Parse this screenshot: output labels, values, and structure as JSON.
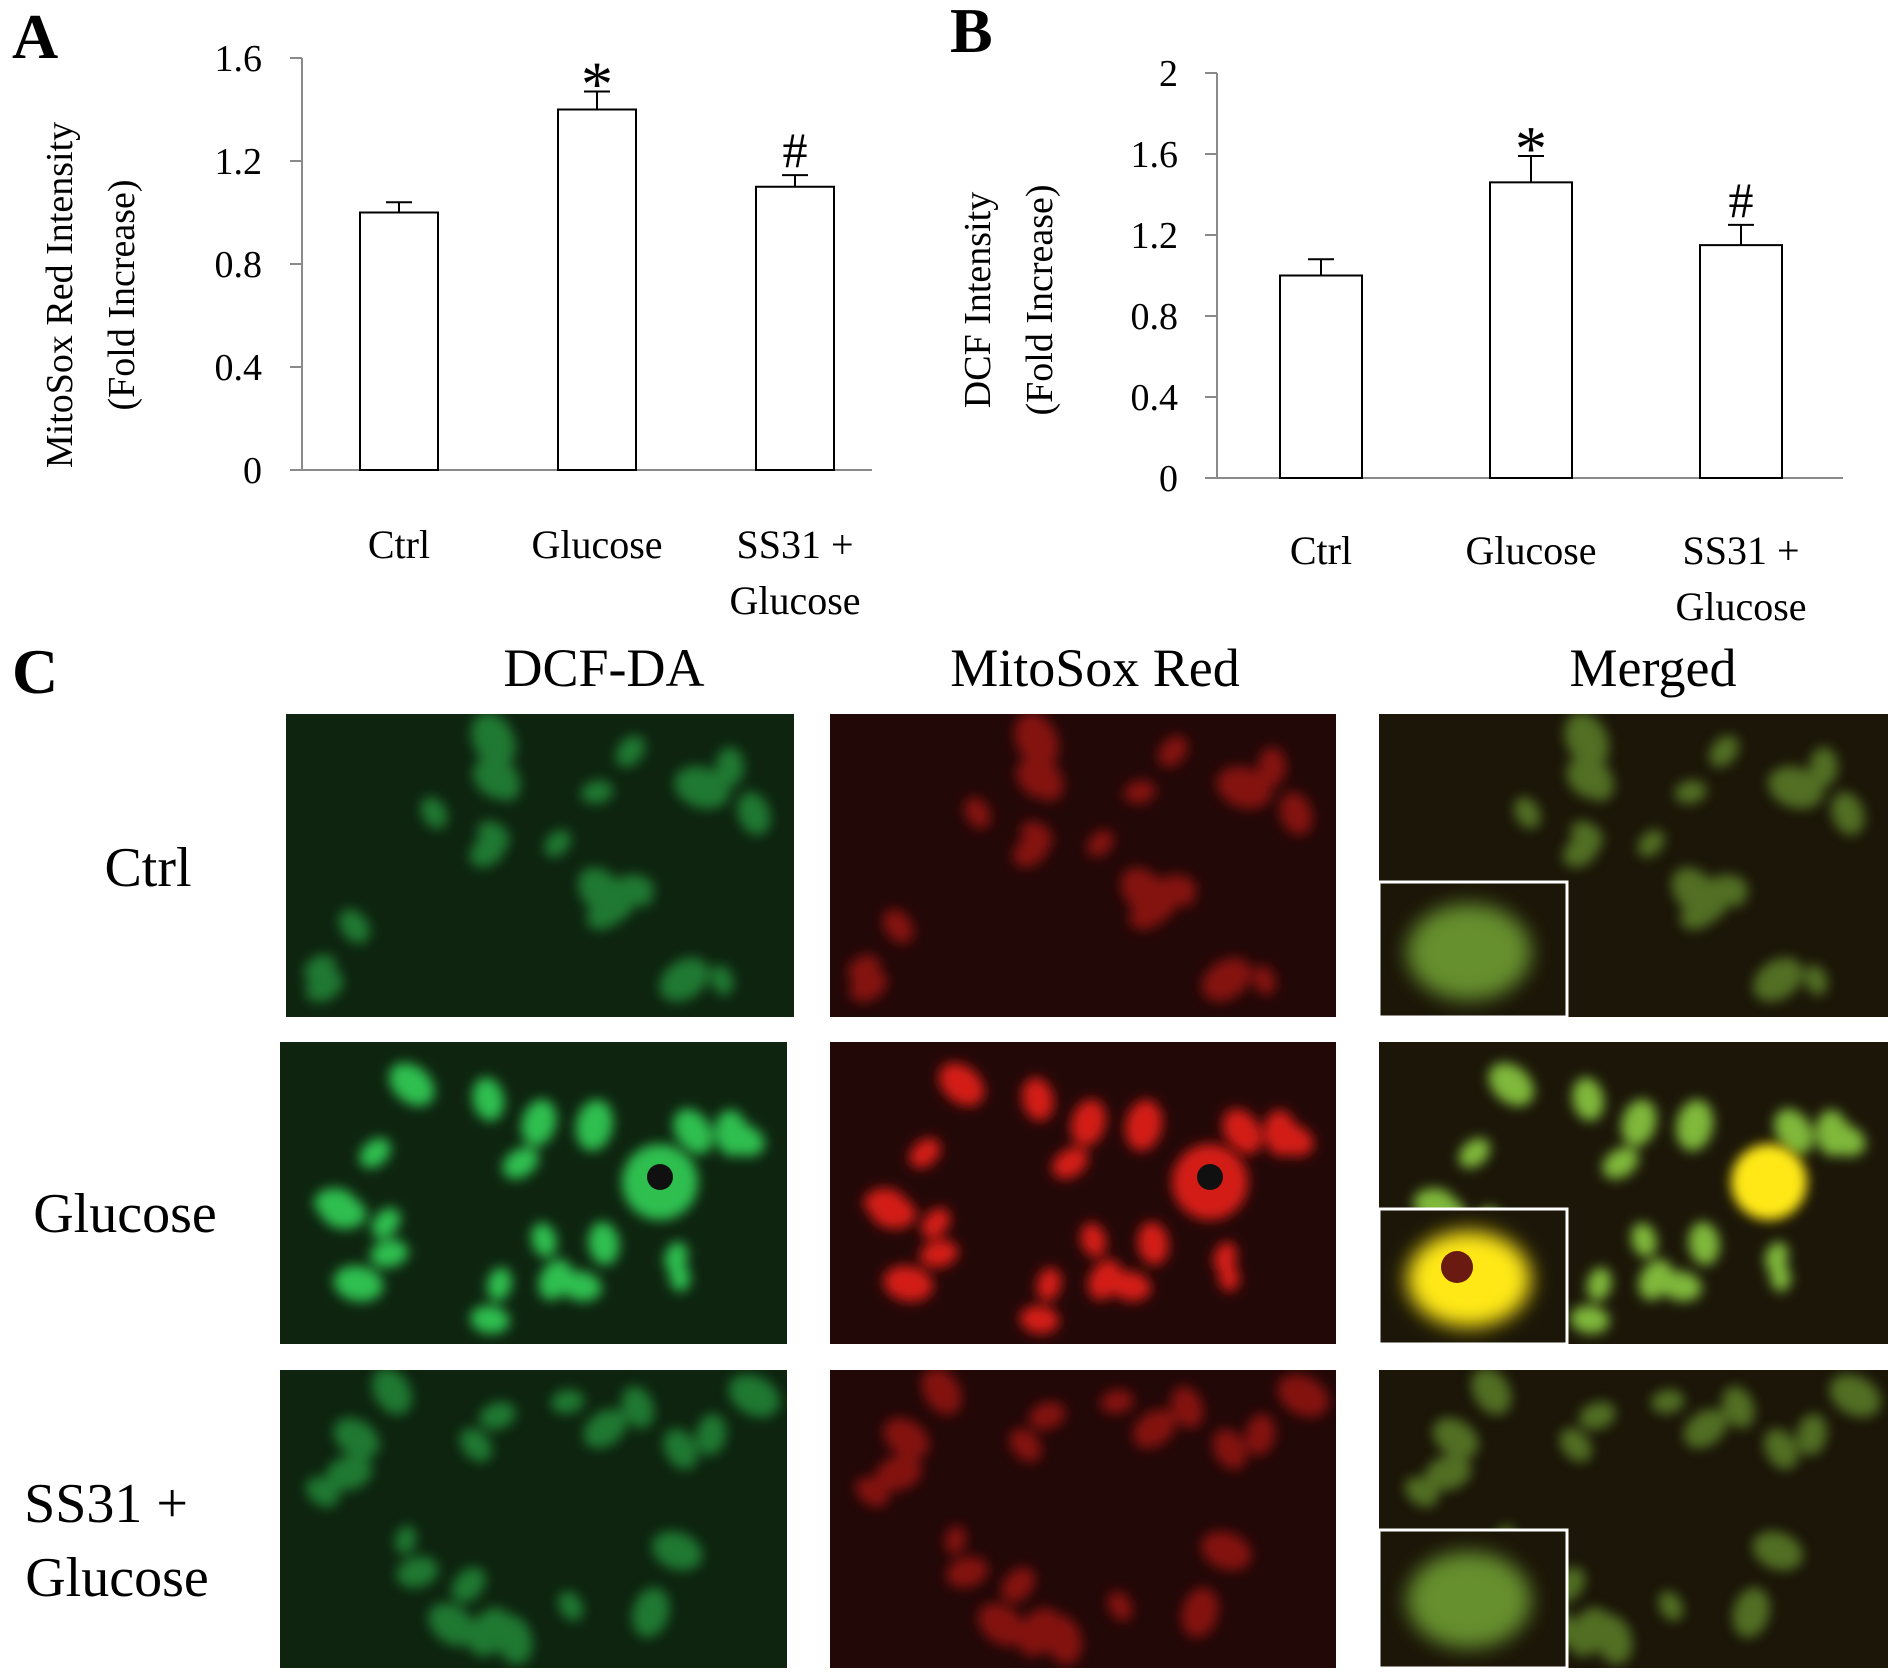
{
  "panels": {
    "a": {
      "letter": "A"
    },
    "b": {
      "letter": "B"
    },
    "c": {
      "letter": "C",
      "columns": [
        "DCF-DA",
        "MitoSox Red",
        "Merged"
      ],
      "rows": [
        {
          "label_lines": [
            "Ctrl"
          ]
        },
        {
          "label_lines": [
            "Glucose"
          ]
        },
        {
          "label_lines": [
            "SS31 +",
            "Glucose"
          ]
        }
      ]
    }
  },
  "chart_data": [
    {
      "type": "bar",
      "panel": "A",
      "categories": [
        [
          "Ctrl"
        ],
        [
          "Glucose"
        ],
        [
          "SS31 +",
          "Glucose"
        ]
      ],
      "values": [
        1.0,
        1.4,
        1.1
      ],
      "errors": [
        0.04,
        0.07,
        0.045
      ],
      "annotations": [
        "",
        "*",
        "#"
      ],
      "ylabel": [
        "MitoSox Red Intensity",
        "(Fold Increase)"
      ],
      "ylim": [
        0,
        1.6
      ],
      "yticks": [
        0,
        0.4,
        0.8,
        1.2,
        1.6
      ],
      "ytick_labels": [
        "0",
        "0.4",
        "0.8",
        "1.2",
        "1.6"
      ],
      "grid": false,
      "bar_fill": "#ffffff",
      "bar_stroke": "#000000"
    },
    {
      "type": "bar",
      "panel": "B",
      "categories": [
        [
          "Ctrl"
        ],
        [
          "Glucose"
        ],
        [
          "SS31 +",
          "Glucose"
        ]
      ],
      "values": [
        1.0,
        1.46,
        1.15
      ],
      "errors": [
        0.08,
        0.13,
        0.1
      ],
      "annotations": [
        "",
        "*",
        "#"
      ],
      "ylabel": [
        "DCF Intensity",
        "(Fold Increase)"
      ],
      "ylim": [
        0,
        2
      ],
      "yticks": [
        0,
        0.4,
        0.8,
        1.2,
        1.6,
        2
      ],
      "ytick_labels": [
        "0",
        "0.4",
        "0.8",
        "1.2",
        "1.6",
        "2"
      ],
      "grid": false,
      "bar_fill": "#ffffff",
      "bar_stroke": "#000000"
    }
  ],
  "micrograph_colors": {
    "green_bg": "#0e240f",
    "green_cell": "#2fbf4f",
    "red_bg": "#230808",
    "red_cell": "#d41a14",
    "merged_bg": "#1b1608",
    "merged_cell": "#7fb83a",
    "yellow": "#ffe818"
  }
}
